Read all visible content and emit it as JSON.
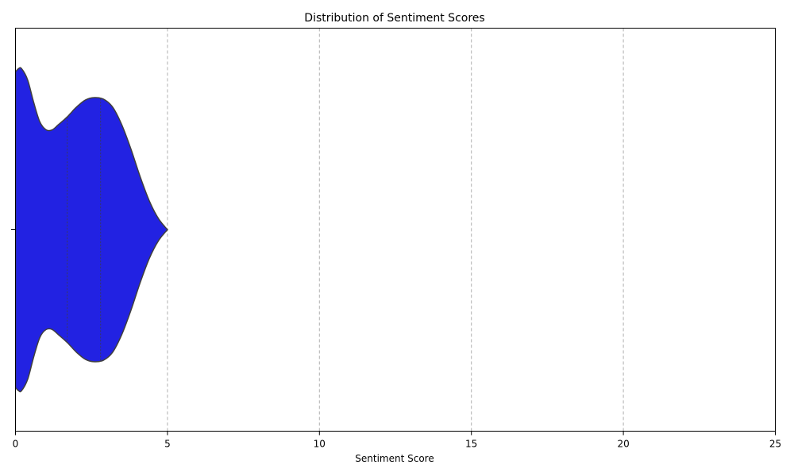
{
  "chart_data": {
    "type": "violin",
    "orientation": "horizontal",
    "title": "Distribution of Sentiment Scores",
    "xlabel": "Sentiment Score",
    "ylabel": "",
    "xlim": [
      0,
      25
    ],
    "x_ticks": [
      0,
      5,
      10,
      15,
      20,
      25
    ],
    "x_tick_labels": [
      "0",
      "5",
      "10",
      "15",
      "20",
      "25"
    ],
    "grid": {
      "x": true,
      "y": false,
      "style": "dashed"
    },
    "fill_color": "#2222e2",
    "edge_color": "#3f3f3f",
    "grid_color": "#b0b0b0",
    "quartiles": [
      1.7,
      2.8
    ],
    "density_profile": [
      {
        "x": 0.0,
        "half_width": 0.98
      },
      {
        "x": 0.1,
        "half_width": 1.0
      },
      {
        "x": 0.2,
        "half_width": 1.0
      },
      {
        "x": 0.4,
        "half_width": 0.93
      },
      {
        "x": 0.6,
        "half_width": 0.79
      },
      {
        "x": 0.8,
        "half_width": 0.67
      },
      {
        "x": 1.0,
        "half_width": 0.621
      },
      {
        "x": 1.2,
        "half_width": 0.619
      },
      {
        "x": 1.4,
        "half_width": 0.65
      },
      {
        "x": 1.7,
        "half_width": 0.7
      },
      {
        "x": 2.0,
        "half_width": 0.76
      },
      {
        "x": 2.3,
        "half_width": 0.805
      },
      {
        "x": 2.6,
        "half_width": 0.82
      },
      {
        "x": 2.9,
        "half_width": 0.81
      },
      {
        "x": 3.2,
        "half_width": 0.76
      },
      {
        "x": 3.5,
        "half_width": 0.65
      },
      {
        "x": 3.8,
        "half_width": 0.5
      },
      {
        "x": 4.1,
        "half_width": 0.33
      },
      {
        "x": 4.4,
        "half_width": 0.18
      },
      {
        "x": 4.7,
        "half_width": 0.07
      },
      {
        "x": 5.0,
        "half_width": 0.0
      }
    ]
  }
}
